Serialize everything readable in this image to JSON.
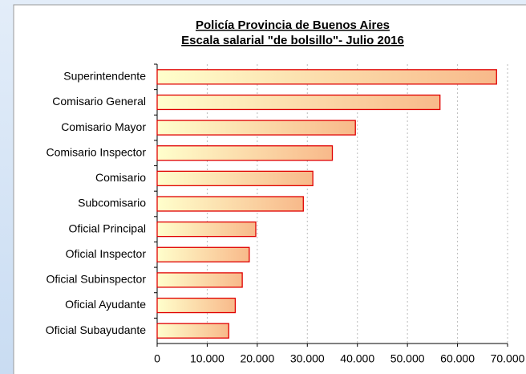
{
  "chart_data": {
    "type": "bar",
    "orientation": "horizontal",
    "title": [
      "Policía Provincia de Buenos Aires",
      "Escala salarial \"de bolsillo\"- Julio 2016"
    ],
    "categories": [
      "Superintendente",
      "Comisario General",
      "Comisario Mayor",
      "Comisario Inspector",
      "Comisario",
      "Subcomisario",
      "Oficial Principal",
      "Oficial Inspector",
      "Oficial Subinspector",
      "Oficial Ayudante",
      "Oficial Subayudante"
    ],
    "values": [
      67800,
      56500,
      39600,
      35000,
      31100,
      29200,
      19700,
      18400,
      17000,
      15600,
      14300
    ],
    "color": [
      "#ffffcc",
      "#f8b98a"
    ],
    "edgecolor": "#e00000",
    "xlim": [
      0,
      70000
    ],
    "xticks": [
      0,
      {
        "value": 10000,
        "label": "10.000"
      },
      {
        "value": 20000,
        "label": "20.000"
      },
      {
        "value": 30000,
        "label": "30.000"
      },
      {
        "value": 40000,
        "label": "40.000"
      },
      {
        "value": 50000,
        "label": "50.000"
      },
      {
        "value": 60000,
        "label": "60.000"
      },
      {
        "value": 70000,
        "label": "70.000"
      }
    ],
    "grid": true
  }
}
